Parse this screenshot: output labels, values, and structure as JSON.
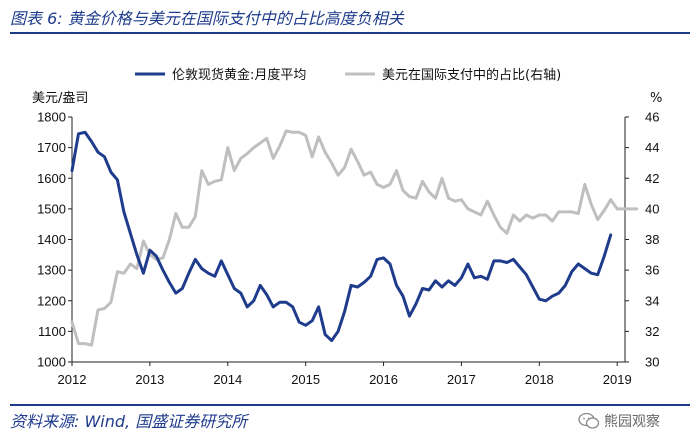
{
  "figure": {
    "title": "图表 6:  黄金价格与美元在国际支付中的占比高度负相关",
    "source": "资料来源:  Wind, 国盛证券研究所",
    "watermark": "熊园观察"
  },
  "chart_data": {
    "type": "line",
    "title": "",
    "xlabel": "",
    "ylabel_left": "美元/盎司",
    "ylabel_right": "%",
    "x_ticks": [
      "2012",
      "2013",
      "2014",
      "2015",
      "2016",
      "2017",
      "2018",
      "2019"
    ],
    "x_range": [
      2012,
      2019.1
    ],
    "y_left_ticks": [
      1000,
      1100,
      1200,
      1300,
      1400,
      1500,
      1600,
      1700,
      1800
    ],
    "y_left_range": [
      1000,
      1800
    ],
    "y_right_ticks": [
      30,
      32,
      34,
      36,
      38,
      40,
      42,
      44,
      46
    ],
    "y_right_range": [
      30,
      46
    ],
    "grid": false,
    "legend_position": "top",
    "series": [
      {
        "name": "伦敦现货黄金:月度平均",
        "axis": "left",
        "color": "#1f3c8c",
        "x": [
          "2012-01",
          "2012-02",
          "2012-03",
          "2012-04",
          "2012-05",
          "2012-06",
          "2012-07",
          "2012-08",
          "2012-09",
          "2012-10",
          "2012-11",
          "2012-12",
          "2013-01",
          "2013-02",
          "2013-03",
          "2013-04",
          "2013-05",
          "2013-06",
          "2013-07",
          "2013-08",
          "2013-09",
          "2013-10",
          "2013-11",
          "2013-12",
          "2014-01",
          "2014-02",
          "2014-03",
          "2014-04",
          "2014-05",
          "2014-06",
          "2014-07",
          "2014-08",
          "2014-09",
          "2014-10",
          "2014-11",
          "2014-12",
          "2015-01",
          "2015-02",
          "2015-03",
          "2015-04",
          "2015-05",
          "2015-06",
          "2015-07",
          "2015-08",
          "2015-09",
          "2015-10",
          "2015-11",
          "2015-12",
          "2016-01",
          "2016-02",
          "2016-03",
          "2016-04",
          "2016-05",
          "2016-06",
          "2016-07",
          "2016-08",
          "2016-09",
          "2016-10",
          "2016-11",
          "2016-12",
          "2017-01",
          "2017-02",
          "2017-03",
          "2017-04",
          "2017-05",
          "2017-06",
          "2017-07",
          "2017-08",
          "2017-09",
          "2017-10",
          "2017-11",
          "2017-12",
          "2018-01",
          "2018-02",
          "2018-03",
          "2018-04",
          "2018-05",
          "2018-06",
          "2018-07",
          "2018-08",
          "2018-09",
          "2018-10",
          "2018-11",
          "2018-12",
          "2019-01",
          "2019-02",
          "2019-03",
          "2019-04",
          "2019-05",
          "2019-06"
        ],
        "values": [
          1625,
          1745,
          1750,
          1720,
          1685,
          1670,
          1620,
          1595,
          1490,
          1420,
          1350,
          1290,
          1365,
          1345,
          1300,
          1260,
          1225,
          1240,
          1290,
          1335,
          1305,
          1290,
          1280,
          1330,
          1285,
          1240,
          1225,
          1180,
          1200,
          1250,
          1220,
          1180,
          1195,
          1195,
          1180,
          1130,
          1120,
          1135,
          1180,
          1090,
          1070,
          1100,
          1165,
          1250,
          1245,
          1260,
          1280,
          1335,
          1340,
          1320,
          1250,
          1215,
          1150,
          1190,
          1240,
          1235,
          1265,
          1245,
          1265,
          1250,
          1275,
          1320,
          1275,
          1280,
          1270,
          1330,
          1330,
          1325,
          1335,
          1310,
          1285,
          1245,
          1205,
          1200,
          1215,
          1225,
          1250,
          1295,
          1320,
          1305,
          1290,
          1285,
          1345,
          1415,
          null,
          null,
          null,
          null,
          null,
          null
        ]
      },
      {
        "name": "美元在国际支付中的占比(右轴)",
        "axis": "right",
        "color": "#bfbfbf",
        "x": [
          "2012-01",
          "2012-02",
          "2012-03",
          "2012-04",
          "2012-05",
          "2012-06",
          "2012-07",
          "2012-08",
          "2012-09",
          "2012-10",
          "2012-11",
          "2012-12",
          "2013-01",
          "2013-02",
          "2013-03",
          "2013-04",
          "2013-05",
          "2013-06",
          "2013-07",
          "2013-08",
          "2013-09",
          "2013-10",
          "2013-11",
          "2013-12",
          "2014-01",
          "2014-02",
          "2014-03",
          "2014-04",
          "2014-05",
          "2014-06",
          "2014-07",
          "2014-08",
          "2014-09",
          "2014-10",
          "2014-11",
          "2014-12",
          "2015-01",
          "2015-02",
          "2015-03",
          "2015-04",
          "2015-05",
          "2015-06",
          "2015-07",
          "2015-08",
          "2015-09",
          "2015-10",
          "2015-11",
          "2015-12",
          "2016-01",
          "2016-02",
          "2016-03",
          "2016-04",
          "2016-05",
          "2016-06",
          "2016-07",
          "2016-08",
          "2016-09",
          "2016-10",
          "2016-11",
          "2016-12",
          "2017-01",
          "2017-02",
          "2017-03",
          "2017-04",
          "2017-05",
          "2017-06",
          "2017-07",
          "2017-08",
          "2017-09",
          "2017-10",
          "2017-11",
          "2017-12",
          "2018-01",
          "2018-02",
          "2018-03",
          "2018-04",
          "2018-05",
          "2018-06",
          "2018-07",
          "2018-08",
          "2018-09",
          "2018-10",
          "2018-11",
          "2018-12",
          "2019-01",
          "2019-02",
          "2019-03",
          "2019-04",
          "2019-05",
          "2019-06"
        ],
        "values": [
          32.6,
          31.2,
          31.2,
          31.1,
          33.4,
          33.5,
          33.9,
          35.9,
          35.8,
          36.4,
          36.1,
          37.9,
          37.0,
          36.7,
          36.8,
          38.0,
          39.7,
          38.8,
          38.8,
          39.5,
          42.5,
          41.6,
          41.8,
          41.9,
          44.0,
          42.5,
          43.3,
          43.6,
          44.0,
          44.3,
          44.6,
          43.3,
          44.1,
          45.1,
          45.0,
          45.0,
          44.8,
          43.4,
          44.7,
          43.7,
          43.0,
          42.2,
          42.7,
          43.9,
          43.1,
          42.2,
          42.4,
          41.6,
          41.4,
          41.6,
          42.5,
          41.2,
          40.8,
          40.7,
          41.8,
          41.1,
          40.7,
          42.0,
          40.7,
          40.5,
          40.6,
          40.0,
          39.8,
          39.6,
          40.5,
          39.6,
          38.8,
          38.4,
          39.6,
          39.2,
          39.6,
          39.4,
          39.6,
          39.6,
          39.2,
          39.8,
          39.8,
          39.8,
          39.7,
          41.6,
          40.3,
          39.3,
          39.9,
          40.6,
          40.0,
          40.0,
          40.0,
          40.0,
          null,
          null
        ]
      }
    ]
  }
}
